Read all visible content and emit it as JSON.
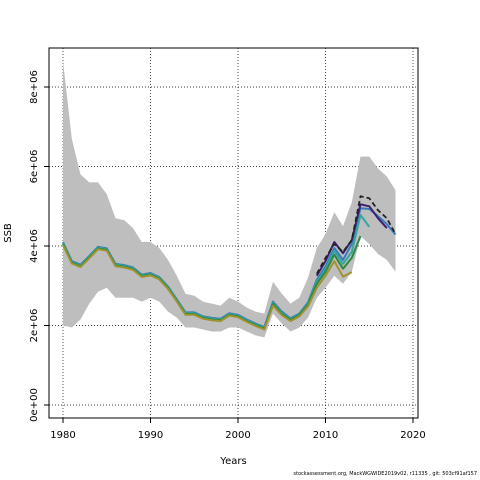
{
  "footnote": "stockassessment.org, MackWGWIDE2019v02, r11335 , git: 503cf91af157",
  "chart_data": {
    "type": "line",
    "title": "",
    "xlabel": "Years",
    "ylabel": "SSB",
    "xlim": [
      1980,
      2020
    ],
    "ylim": [
      0,
      8800000
    ],
    "xticks": [
      1980,
      1990,
      2000,
      2010,
      2020
    ],
    "yticks": [
      0,
      2000000,
      4000000,
      6000000,
      8000000
    ],
    "ytick_labels": [
      "0e+00",
      "2e+06",
      "4e+06",
      "6e+06",
      "8e+06"
    ],
    "grid": true,
    "grid_style": "dotted",
    "confidence_band": {
      "color": "#bebebe",
      "x": [
        1980,
        1981,
        1982,
        1983,
        1984,
        1985,
        1986,
        1987,
        1988,
        1989,
        1990,
        1991,
        1992,
        1993,
        1994,
        1995,
        1996,
        1997,
        1998,
        1999,
        2000,
        2001,
        2002,
        2003,
        2004,
        2005,
        2006,
        2007,
        2008,
        2009,
        2010,
        2011,
        2012,
        2013,
        2014,
        2015,
        2016,
        2017,
        2018
      ],
      "upper": [
        8650000,
        6700000,
        5800000,
        5600000,
        5600000,
        5300000,
        4700000,
        4650000,
        4450000,
        4100000,
        4100000,
        3950000,
        3650000,
        3250000,
        2800000,
        2750000,
        2600000,
        2550000,
        2500000,
        2700000,
        2600000,
        2450000,
        2350000,
        2300000,
        3100000,
        2800000,
        2550000,
        2700000,
        3200000,
        3950000,
        4300000,
        4850000,
        4500000,
        5100000,
        6250000,
        6250000,
        5950000,
        5750000,
        5400000
      ],
      "lower": [
        2000000,
        1950000,
        2150000,
        2550000,
        2850000,
        2950000,
        2700000,
        2700000,
        2700000,
        2600000,
        2700000,
        2600000,
        2350000,
        2200000,
        1950000,
        1950000,
        1900000,
        1850000,
        1850000,
        1950000,
        1950000,
        1850000,
        1750000,
        1700000,
        2300000,
        2050000,
        1850000,
        1950000,
        2200000,
        2700000,
        2950000,
        3250000,
        3050000,
        3350000,
        4250000,
        4050000,
        3800000,
        3650000,
        3350000
      ]
    },
    "series": [
      {
        "color": "#3a7ab8",
        "x": [
          1980,
          1981,
          1982,
          1983,
          1984,
          1985,
          1986,
          1987,
          1988,
          1989,
          1990,
          1991,
          1992,
          1993,
          1994,
          1995,
          1996,
          1997,
          1998,
          1999,
          2000,
          2001,
          2002,
          2003,
          2004,
          2005,
          2006,
          2007,
          2008,
          2009,
          2010,
          2011,
          2012,
          2013,
          2014,
          2015,
          2016,
          2017,
          2018
        ],
        "values": [
          4100000,
          3620000,
          3530000,
          3750000,
          3980000,
          3940000,
          3550000,
          3520000,
          3460000,
          3280000,
          3320000,
          3220000,
          2980000,
          2660000,
          2330000,
          2330000,
          2230000,
          2190000,
          2170000,
          2310000,
          2270000,
          2150000,
          2050000,
          1960000,
          2600000,
          2350000,
          2180000,
          2300000,
          2580000,
          3150000,
          3480000,
          3950000,
          3650000,
          4050000,
          4950000,
          4930000,
          4750000,
          4550000,
          4290000
        ]
      },
      {
        "color": "#35a7a2",
        "x": [
          1980,
          1981,
          1982,
          1983,
          1984,
          1985,
          1986,
          1987,
          1988,
          1989,
          1990,
          1991,
          1992,
          1993,
          1994,
          1995,
          1996,
          1997,
          1998,
          1999,
          2000,
          2001,
          2002,
          2003,
          2004,
          2005,
          2006,
          2007,
          2008,
          2009,
          2010,
          2011,
          2012,
          2013,
          2014,
          2015
        ],
        "values": [
          4080000,
          3600000,
          3510000,
          3730000,
          3960000,
          3920000,
          3530000,
          3500000,
          3440000,
          3260000,
          3300000,
          3200000,
          2960000,
          2640000,
          2310000,
          2310000,
          2210000,
          2170000,
          2150000,
          2290000,
          2250000,
          2130000,
          2030000,
          1940000,
          2570000,
          2320000,
          2160000,
          2280000,
          2560000,
          3100000,
          3420000,
          3880000,
          3550000,
          3850000,
          4780000,
          4480000
        ]
      },
      {
        "color": "#2b8a3e",
        "x": [
          1980,
          1981,
          1982,
          1983,
          1984,
          1985,
          1986,
          1987,
          1988,
          1989,
          1990,
          1991,
          1992,
          1993,
          1994,
          1995,
          1996,
          1997,
          1998,
          1999,
          2000,
          2001,
          2002,
          2003,
          2004,
          2005,
          2006,
          2007,
          2008,
          2009,
          2010,
          2011,
          2012,
          2013,
          2014
        ],
        "values": [
          4050000,
          3580000,
          3490000,
          3710000,
          3940000,
          3900000,
          3510000,
          3480000,
          3420000,
          3240000,
          3280000,
          3180000,
          2940000,
          2620000,
          2290000,
          2290000,
          2190000,
          2150000,
          2130000,
          2270000,
          2230000,
          2110000,
          2010000,
          1920000,
          2540000,
          2290000,
          2140000,
          2260000,
          2520000,
          3050000,
          3350000,
          3780000,
          3430000,
          3700000,
          4250000
        ]
      },
      {
        "color": "#a0922f",
        "x": [
          1980,
          1981,
          1982,
          1983,
          1984,
          1985,
          1986,
          1987,
          1988,
          1989,
          1990,
          1991,
          1992,
          1993,
          1994,
          1995,
          1996,
          1997,
          1998,
          1999,
          2000,
          2001,
          2002,
          2003,
          2004,
          2005,
          2006,
          2007,
          2008,
          2009,
          2010,
          2011,
          2012,
          2013
        ],
        "values": [
          4020000,
          3560000,
          3470000,
          3690000,
          3920000,
          3880000,
          3490000,
          3460000,
          3400000,
          3220000,
          3260000,
          3160000,
          2920000,
          2600000,
          2270000,
          2270000,
          2170000,
          2130000,
          2110000,
          2250000,
          2210000,
          2090000,
          1990000,
          1900000,
          2500000,
          2260000,
          2110000,
          2230000,
          2480000,
          2950000,
          3250000,
          3620000,
          3230000,
          3340000
        ]
      },
      {
        "color": "#3d1f6e",
        "x": [
          2009,
          2010,
          2011,
          2012,
          2013,
          2014,
          2015,
          2016,
          2017
        ],
        "values": [
          3250000,
          3620000,
          4100000,
          3820000,
          4150000,
          5050000,
          5000000,
          4700000,
          4450000
        ]
      },
      {
        "color": "#222222",
        "dashed": true,
        "x": [
          2009,
          2010,
          2011,
          2012,
          2013,
          2014,
          2015,
          2016,
          2017,
          2018
        ],
        "values": [
          3300000,
          3700000,
          4050000,
          3850000,
          4150000,
          5250000,
          5200000,
          4900000,
          4700000,
          4300000
        ]
      }
    ]
  }
}
